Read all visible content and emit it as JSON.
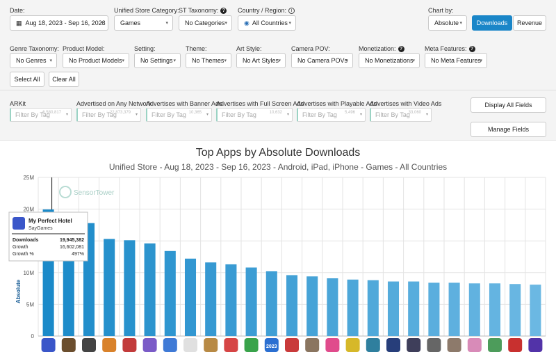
{
  "filters": {
    "date_label": "Date:",
    "date_value": "Aug 18, 2023 - Sep 16, 2023",
    "category_label": "Unified Store Category:",
    "category_value": "Games",
    "taxonomy_label": "ST Taxonomy:",
    "taxonomy_value": "No Categories",
    "country_label": "Country / Region:",
    "country_value": "All Countries",
    "chartby_label": "Chart by:",
    "chartby_value": "Absolute",
    "downloads_btn": "Downloads",
    "revenue_btn": "Revenue"
  },
  "filters2": [
    {
      "label": "Genre Taxonomy:",
      "value": "No Genres"
    },
    {
      "label": "Product Model:",
      "value": "No Product Models"
    },
    {
      "label": "Setting:",
      "value": "No Settings"
    },
    {
      "label": "Theme:",
      "value": "No Themes"
    },
    {
      "label": "Art Style:",
      "value": "No Art Styles"
    },
    {
      "label": "Camera POV:",
      "value": "No Camera POVs"
    },
    {
      "label": "Monetization:",
      "value": "No Monetizations"
    },
    {
      "label": "Meta Features:",
      "value": "No Meta Features"
    }
  ],
  "select_all": "Select All",
  "clear_all": "Clear All",
  "tag_filters": [
    {
      "label": "ARKit",
      "placeholder": "Filter By Tag",
      "count": "6,580,817"
    },
    {
      "label": "Advertised on Any Network",
      "placeholder": "Filter By Tag",
      "count": "22,873,379"
    },
    {
      "label": "Advertises with Banner Ads",
      "placeholder": "Filter By Tag",
      "count": "10,365"
    },
    {
      "label": "Advertises with Full Screen Ads",
      "placeholder": "Filter By Tag",
      "count": "10,632"
    },
    {
      "label": "Advertises with Playable Ads",
      "placeholder": "Filter By Tag",
      "count": "5,496"
    },
    {
      "label": "Advertises with Video Ads",
      "placeholder": "Filter By Tag",
      "count": "33,060"
    }
  ],
  "display_all_fields": "Display All Fields",
  "manage_fields": "Manage Fields",
  "watermark": "SensorTower",
  "tooltip": {
    "app_name": "My Perfect Hotel",
    "publisher": "SayGames",
    "rows": [
      {
        "k": "Downloads",
        "v": "19,945,382"
      },
      {
        "k": "Growth",
        "v": "16,602,081"
      },
      {
        "k": "Growth %",
        "v": "497%"
      }
    ]
  },
  "colors": {
    "bar_start": "#1b8ac9",
    "bar_end": "#6bb8e3",
    "accent": "#1a86c8"
  },
  "app_icon_colors": [
    "#3a56c9",
    "#6b4e2e",
    "#444444",
    "#d9822b",
    "#c23b3b",
    "#7a5bc7",
    "#3f7ad6",
    "#e0e0e0",
    "#b88a45",
    "#d64545",
    "#39a34a",
    "#2b6fd1",
    "#c93a3a",
    "#8a7560",
    "#e04b8c",
    "#d6b829",
    "#2f7f9e",
    "#273e7a",
    "#3e3e5a",
    "#666666",
    "#8d7a6b",
    "#d88bb8",
    "#4d9c5b",
    "#c8302f",
    "#5233a8"
  ],
  "chart_data": {
    "type": "bar",
    "title": "Top Apps by Absolute Downloads",
    "subtitle": "Unified Store - Aug 18, 2023 - Sep 16, 2023 - Android, iPad, iPhone - Games - All Countries",
    "ylabel": "Absolute",
    "ylim": [
      0,
      25000000
    ],
    "yticks": [
      "0",
      "5M",
      "10M",
      "15M",
      "20M",
      "25M"
    ],
    "categories": [
      "My Perfect Hotel",
      "",
      "",
      "",
      "",
      "",
      "",
      "",
      "",
      "",
      "",
      "2023",
      "",
      "",
      "",
      "",
      "",
      "",
      "",
      "",
      "",
      "",
      "",
      "",
      ""
    ],
    "values": [
      19945382,
      19500000,
      17800000,
      15300000,
      15100000,
      14600000,
      13400000,
      12200000,
      11600000,
      11300000,
      10800000,
      10200000,
      9600000,
      9400000,
      9100000,
      8900000,
      8800000,
      8600000,
      8600000,
      8400000,
      8400000,
      8300000,
      8300000,
      8200000,
      8100000
    ],
    "grid": true,
    "legend": "none"
  }
}
